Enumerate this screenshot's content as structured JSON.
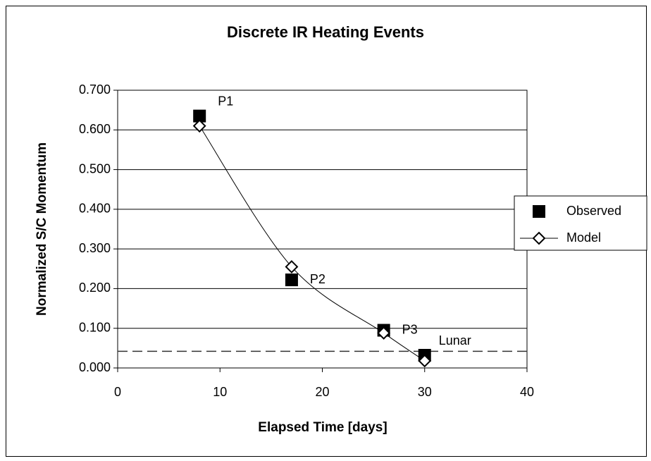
{
  "chart_data": {
    "type": "line",
    "title": "Discrete IR Heating Events",
    "xlabel": "Elapsed Time  [days]",
    "ylabel": "Normalized S/C Momentum",
    "x": [
      8,
      17,
      26,
      30
    ],
    "series": [
      {
        "name": "Observed",
        "color": "#000000",
        "marker": "square",
        "line": false,
        "values": [
          0.635,
          0.222,
          0.095,
          0.032
        ]
      },
      {
        "name": "Model",
        "color": "#000000",
        "marker": "diamond",
        "line": true,
        "values": [
          0.61,
          0.255,
          0.088,
          0.018
        ]
      }
    ],
    "point_labels": [
      "P1",
      "P2",
      "P3"
    ],
    "reference_lines": [
      {
        "label": "Lunar",
        "value": 0.042
      }
    ],
    "xlim": [
      0,
      40
    ],
    "xticks": [
      0,
      10,
      20,
      30,
      40
    ],
    "ylim": [
      0,
      0.7
    ],
    "yticks": [
      {
        "value": 0,
        "label": "0.000"
      },
      {
        "value": 0.1,
        "label": "0.100"
      },
      {
        "value": 0.2,
        "label": "0.200"
      },
      {
        "value": 0.3,
        "label": "0.300"
      },
      {
        "value": 0.4,
        "label": "0.400"
      },
      {
        "value": 0.5,
        "label": "0.500"
      },
      {
        "value": 0.6,
        "label": "0.600"
      },
      {
        "value": 0.7,
        "label": "0.700"
      }
    ],
    "grid": true,
    "legend": "right"
  }
}
